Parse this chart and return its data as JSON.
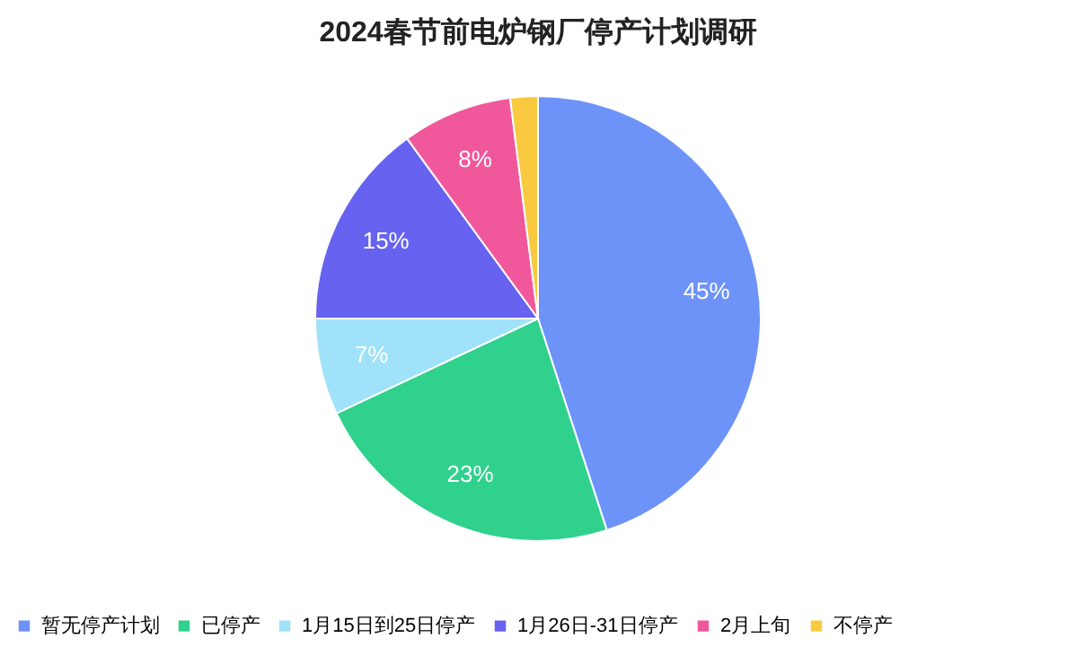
{
  "chart_data": {
    "type": "pie",
    "title": "2024春节前电炉钢厂停产计划调研",
    "categories": [
      "暂无停产计划",
      "已停产",
      "1月15日到25日停产",
      "1月26日-31日停产",
      "2月上旬",
      "不停产"
    ],
    "values": [
      45,
      23,
      7,
      15,
      8,
      2
    ],
    "colors": [
      "#6e93f8",
      "#2fd18d",
      "#9fe2fa",
      "#6762ef",
      "#f0589b",
      "#f9c940"
    ],
    "value_labels": [
      "45%",
      "23%",
      "7%",
      "15%",
      "8%",
      null
    ],
    "legend": "bottom"
  }
}
